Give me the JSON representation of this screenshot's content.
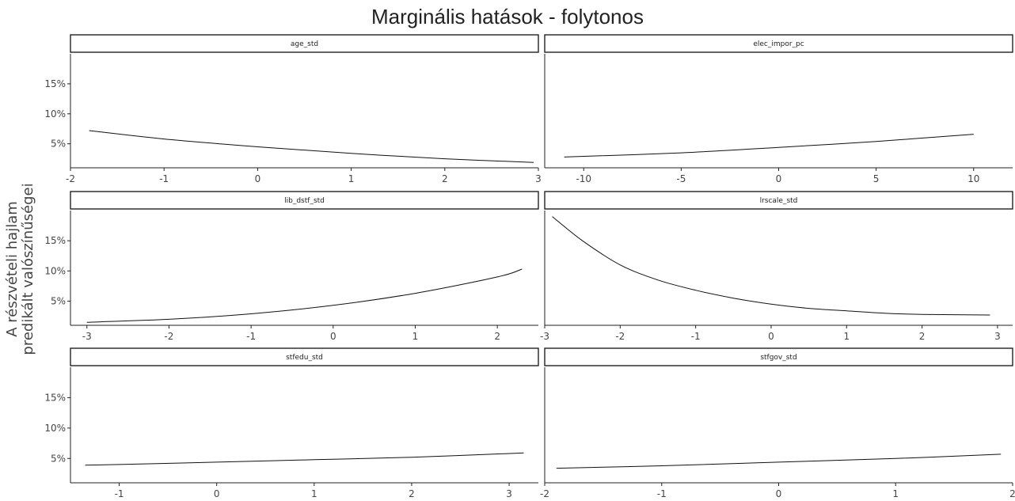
{
  "title": "Marginális hatások - folytonos",
  "ylabel_lines": [
    "A részvételi hajlam",
    "predikált valószínűségei"
  ],
  "colors": {
    "line": "#111111",
    "axis": "#222222",
    "text": "#444444"
  },
  "chart_data": {
    "type": "line",
    "layout": "facet-grid-3x2",
    "title": "Marginális hatások - folytonos",
    "ylabel": "A részvételi hajlam predikált valószínűségei",
    "y_ticks": [
      5,
      10,
      15
    ],
    "y_tick_labels": [
      "5%",
      "10%",
      "15%"
    ],
    "ylim": [
      1,
      20
    ],
    "grid": false,
    "panels": [
      {
        "name": "age_std",
        "xlim": [
          -2,
          3
        ],
        "x_ticks": [
          -2,
          -1,
          0,
          1,
          2,
          3
        ],
        "x_tick_labels": [
          "-2",
          "-1",
          "0",
          "1",
          "2",
          "3"
        ],
        "x": [
          -1.8,
          -1,
          0,
          1,
          2,
          2.95
        ],
        "y": [
          7.2,
          5.8,
          4.5,
          3.4,
          2.5,
          1.9
        ]
      },
      {
        "name": "elec_impor_pc",
        "xlim": [
          -12,
          12
        ],
        "x_ticks": [
          -10,
          -5,
          0,
          5,
          10
        ],
        "x_tick_labels": [
          "-10",
          "-5",
          "0",
          "5",
          "10"
        ],
        "x": [
          -11,
          -5,
          0,
          5,
          10
        ],
        "y": [
          2.8,
          3.5,
          4.4,
          5.4,
          6.6
        ]
      },
      {
        "name": "lib_dstf_std",
        "xlim": [
          -3.2,
          2.5
        ],
        "x_ticks": [
          -3,
          -2,
          -1,
          0,
          1,
          2
        ],
        "x_tick_labels": [
          "-3",
          "-2",
          "-1",
          "0",
          "1",
          "2"
        ],
        "x": [
          -3,
          -2,
          -1,
          0,
          1,
          2,
          2.3
        ],
        "y": [
          1.5,
          2.0,
          2.9,
          4.3,
          6.3,
          9.0,
          10.3
        ]
      },
      {
        "name": "lrscale_std",
        "xlim": [
          -3,
          3.2
        ],
        "x_ticks": [
          -3,
          -2,
          -1,
          0,
          1,
          2,
          3
        ],
        "x_tick_labels": [
          "-3",
          "-2",
          "-1",
          "0",
          "1",
          "2",
          "3"
        ],
        "x": [
          -2.9,
          -2.5,
          -2,
          -1.5,
          -1,
          -0.5,
          0,
          0.5,
          1,
          1.5,
          2,
          2.9
        ],
        "y": [
          19.0,
          15.0,
          11.0,
          8.5,
          6.8,
          5.5,
          4.5,
          3.8,
          3.4,
          3.0,
          2.8,
          2.7
        ]
      },
      {
        "name": "stfedu_std",
        "xlim": [
          -1.5,
          3.3
        ],
        "x_ticks": [
          -1,
          0,
          1,
          2,
          3
        ],
        "x_tick_labels": [
          "-1",
          "0",
          "1",
          "2",
          "3"
        ],
        "x": [
          -1.35,
          -1,
          0,
          1,
          2,
          3.15
        ],
        "y": [
          3.9,
          4.0,
          4.4,
          4.8,
          5.2,
          5.9
        ]
      },
      {
        "name": "stfgov_std",
        "xlim": [
          -2,
          2
        ],
        "x_ticks": [
          -2,
          -1,
          0,
          1,
          2
        ],
        "x_tick_labels": [
          "-2",
          "-1",
          "0",
          "1",
          "2"
        ],
        "x": [
          -1.9,
          -1,
          0,
          1,
          1.9
        ],
        "y": [
          3.4,
          3.8,
          4.4,
          5.0,
          5.7
        ]
      }
    ]
  }
}
